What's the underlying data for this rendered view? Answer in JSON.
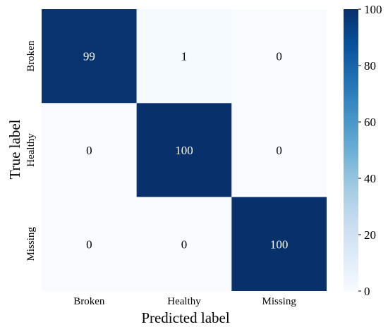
{
  "chart_data": {
    "type": "heatmap",
    "title": "",
    "xlabel": "Predicted label",
    "ylabel": "True label",
    "x_categories": [
      "Broken",
      "Healthy",
      "Missing"
    ],
    "y_categories": [
      "Broken",
      "Healthy",
      "Missing"
    ],
    "values": [
      [
        99,
        1,
        0
      ],
      [
        0,
        100,
        0
      ],
      [
        0,
        0,
        100
      ]
    ],
    "colorbar": {
      "range": [
        0,
        100
      ],
      "ticks": [
        0,
        20,
        40,
        60,
        80,
        100
      ],
      "colormap": "Blues"
    },
    "colors": {
      "low": "#f7fbff",
      "high": "#08306b",
      "text_on_dark": "#ffffff",
      "text_on_light": "#000000"
    }
  }
}
